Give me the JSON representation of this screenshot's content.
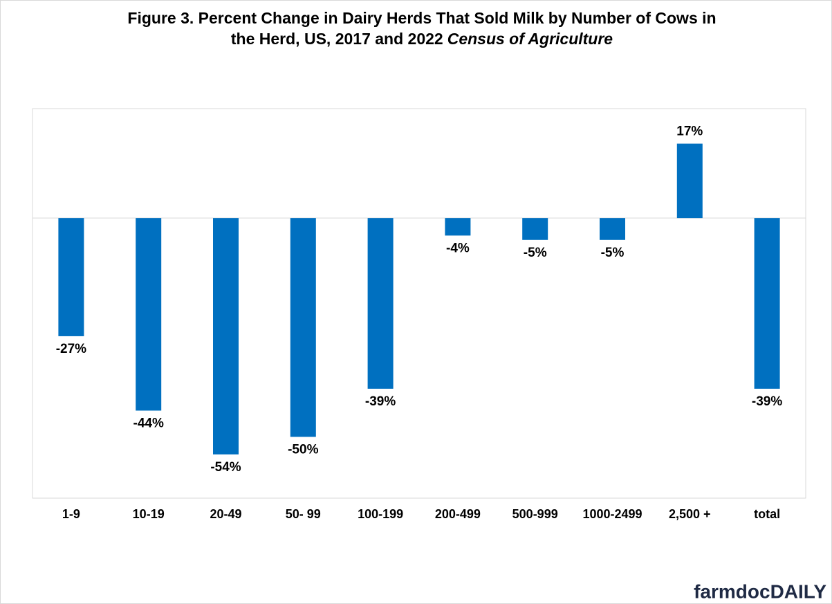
{
  "chart_data": {
    "type": "bar",
    "title": [
      "Figure 3.  Percent Change in Dairy Herds That Sold Milk by Number of Cows in",
      "the Herd, US, 2017 and 2022",
      "Census of Agriculture"
    ],
    "categories": [
      "1-9",
      "10-19",
      "20-49",
      "50- 99",
      "100-199",
      "200-499",
      "500-999",
      "1000-2499",
      "2,500 +",
      "total"
    ],
    "values": [
      -27,
      -44,
      -54,
      -50,
      -39,
      -4,
      -5,
      -5,
      17,
      -39
    ],
    "value_labels": [
      "-27%",
      "-44%",
      "-54%",
      "-50%",
      "-39%",
      "-4%",
      "-5%",
      "-5%",
      "17%",
      "-39%"
    ],
    "color": "#0070c0",
    "ylim": [
      -64,
      25
    ],
    "logo": "farmdocDAILY"
  }
}
